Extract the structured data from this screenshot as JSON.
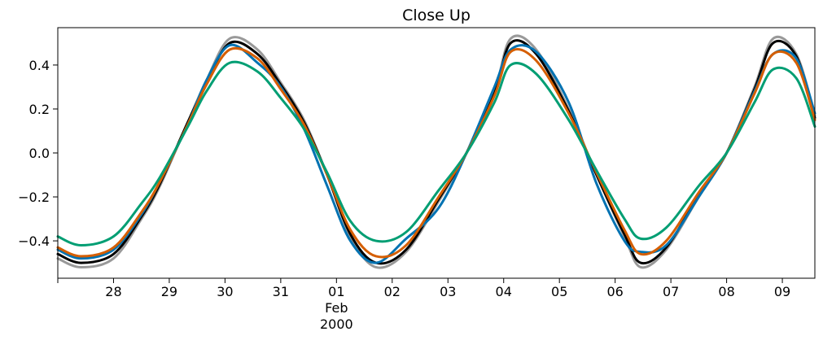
{
  "chart_data": {
    "type": "line",
    "title": "Close Up",
    "xlabel": "",
    "ylabel": "",
    "x_unit": "date",
    "xlim": [
      "2000-01-27T00:00",
      "2000-02-09T14:00"
    ],
    "ylim": [
      -0.57,
      0.57
    ],
    "grid": false,
    "legend": "none",
    "x_ticks": [
      {
        "date": "2000-01-28",
        "label": "28"
      },
      {
        "date": "2000-01-29",
        "label": "29"
      },
      {
        "date": "2000-01-30",
        "label": "30"
      },
      {
        "date": "2000-01-31",
        "label": "31"
      },
      {
        "date": "2000-02-01",
        "label": "01",
        "sublabel": "Feb",
        "sublabel2": "2000"
      },
      {
        "date": "2000-02-02",
        "label": "02"
      },
      {
        "date": "2000-02-03",
        "label": "03"
      },
      {
        "date": "2000-02-04",
        "label": "04"
      },
      {
        "date": "2000-02-05",
        "label": "05"
      },
      {
        "date": "2000-02-06",
        "label": "06"
      },
      {
        "date": "2000-02-07",
        "label": "07"
      },
      {
        "date": "2000-02-08",
        "label": "08"
      },
      {
        "date": "2000-02-09",
        "label": "09"
      }
    ],
    "y_ticks": [
      {
        "value": -0.4,
        "label": "−0.4"
      },
      {
        "value": -0.2,
        "label": "−0.2"
      },
      {
        "value": 0.0,
        "label": "0.0"
      },
      {
        "value": 0.2,
        "label": "0.2"
      },
      {
        "value": 0.4,
        "label": "0.4"
      }
    ],
    "series": [
      {
        "color": "#999999",
        "x": [
          "2000-01-27T00:00",
          "2000-01-27T10:00",
          "2000-01-28T00:00",
          "2000-01-28T12:00",
          "2000-01-28T20:00",
          "2000-01-29T08:00",
          "2000-01-29T16:00",
          "2000-01-30T02:00",
          "2000-01-30T14:00",
          "2000-01-31T00:00",
          "2000-01-31T10:00",
          "2000-01-31T20:00",
          "2000-02-01T06:00",
          "2000-02-01T17:00",
          "2000-02-02T06:00",
          "2000-02-02T20:00",
          "2000-02-03T08:00",
          "2000-02-03T20:00",
          "2000-02-04T03:00",
          "2000-02-04T14:00",
          "2000-02-05T04:00",
          "2000-02-05T16:00",
          "2000-02-06T04:00",
          "2000-02-06T11:00",
          "2000-02-06T22:00",
          "2000-02-07T12:00",
          "2000-02-08T00:00",
          "2000-02-08T12:00",
          "2000-02-08T20:00",
          "2000-02-09T06:00",
          "2000-02-09T14:00"
        ],
        "values": [
          -0.48,
          -0.52,
          -0.48,
          -0.3,
          -0.15,
          0.14,
          0.33,
          0.52,
          0.47,
          0.32,
          0.15,
          -0.1,
          -0.38,
          -0.52,
          -0.45,
          -0.22,
          0.0,
          0.28,
          0.52,
          0.47,
          0.2,
          -0.1,
          -0.38,
          -0.52,
          -0.44,
          -0.2,
          0.0,
          0.3,
          0.52,
          0.45,
          0.17
        ]
      },
      {
        "color": "#000000",
        "x": [
          "2000-01-27T00:00",
          "2000-01-27T10:00",
          "2000-01-28T00:00",
          "2000-01-28T12:00",
          "2000-01-28T20:00",
          "2000-01-29T08:00",
          "2000-01-29T16:00",
          "2000-01-30T02:00",
          "2000-01-30T14:00",
          "2000-01-31T00:00",
          "2000-01-31T10:00",
          "2000-01-31T20:00",
          "2000-02-01T06:00",
          "2000-02-01T17:00",
          "2000-02-02T06:00",
          "2000-02-02T20:00",
          "2000-02-03T08:00",
          "2000-02-03T20:00",
          "2000-02-04T03:00",
          "2000-02-04T14:00",
          "2000-02-05T04:00",
          "2000-02-05T16:00",
          "2000-02-06T04:00",
          "2000-02-06T11:00",
          "2000-02-06T22:00",
          "2000-02-07T12:00",
          "2000-02-08T00:00",
          "2000-02-08T12:00",
          "2000-02-08T20:00",
          "2000-02-09T06:00",
          "2000-02-09T14:00"
        ],
        "values": [
          -0.46,
          -0.5,
          -0.46,
          -0.29,
          -0.14,
          0.14,
          0.32,
          0.5,
          0.45,
          0.31,
          0.14,
          -0.1,
          -0.37,
          -0.5,
          -0.44,
          -0.21,
          0.0,
          0.27,
          0.5,
          0.45,
          0.19,
          -0.1,
          -0.37,
          -0.5,
          -0.43,
          -0.19,
          0.0,
          0.29,
          0.5,
          0.44,
          0.16
        ]
      },
      {
        "color": "#0072b2",
        "x": [
          "2000-01-27T00:00",
          "2000-01-27T10:00",
          "2000-01-28T00:00",
          "2000-01-28T12:00",
          "2000-01-28T20:00",
          "2000-01-29T08:00",
          "2000-01-29T16:00",
          "2000-01-30T02:00",
          "2000-01-30T14:00",
          "2000-01-31T00:00",
          "2000-01-31T10:00",
          "2000-01-31T20:00",
          "2000-02-01T06:00",
          "2000-02-01T17:00",
          "2000-02-02T06:00",
          "2000-02-02T20:00",
          "2000-02-03T08:00",
          "2000-02-03T20:00",
          "2000-02-04T03:00",
          "2000-02-04T14:00",
          "2000-02-05T04:00",
          "2000-02-05T16:00",
          "2000-02-06T04:00",
          "2000-02-06T11:00",
          "2000-02-06T22:00",
          "2000-02-07T12:00",
          "2000-02-08T00:00",
          "2000-02-08T12:00",
          "2000-02-08T20:00",
          "2000-02-09T06:00",
          "2000-02-09T14:00"
        ],
        "values": [
          -0.44,
          -0.48,
          -0.44,
          -0.28,
          -0.13,
          0.13,
          0.33,
          0.49,
          0.41,
          0.3,
          0.11,
          -0.15,
          -0.4,
          -0.5,
          -0.39,
          -0.25,
          0.0,
          0.3,
          0.47,
          0.46,
          0.23,
          -0.14,
          -0.4,
          -0.45,
          -0.42,
          -0.2,
          0.0,
          0.28,
          0.45,
          0.43,
          0.18
        ]
      },
      {
        "color": "#d55e00",
        "x": [
          "2000-01-27T00:00",
          "2000-01-27T10:00",
          "2000-01-28T00:00",
          "2000-01-28T12:00",
          "2000-01-28T20:00",
          "2000-01-29T08:00",
          "2000-01-29T16:00",
          "2000-01-30T02:00",
          "2000-01-30T14:00",
          "2000-01-31T00:00",
          "2000-01-31T10:00",
          "2000-01-31T20:00",
          "2000-02-01T06:00",
          "2000-02-01T17:00",
          "2000-02-02T06:00",
          "2000-02-02T20:00",
          "2000-02-03T08:00",
          "2000-02-03T20:00",
          "2000-02-04T03:00",
          "2000-02-04T14:00",
          "2000-02-05T04:00",
          "2000-02-05T16:00",
          "2000-02-06T04:00",
          "2000-02-06T11:00",
          "2000-02-06T22:00",
          "2000-02-07T12:00",
          "2000-02-08T00:00",
          "2000-02-08T12:00",
          "2000-02-08T20:00",
          "2000-02-09T06:00",
          "2000-02-09T14:00"
        ],
        "values": [
          -0.43,
          -0.47,
          -0.43,
          -0.27,
          -0.13,
          0.13,
          0.31,
          0.47,
          0.43,
          0.29,
          0.13,
          -0.1,
          -0.35,
          -0.47,
          -0.42,
          -0.2,
          0.0,
          0.26,
          0.46,
          0.42,
          0.18,
          -0.09,
          -0.35,
          -0.46,
          -0.4,
          -0.18,
          0.0,
          0.27,
          0.45,
          0.41,
          0.15
        ]
      },
      {
        "color": "#009e73",
        "x": [
          "2000-01-27T00:00",
          "2000-01-27T10:00",
          "2000-01-28T00:00",
          "2000-01-28T12:00",
          "2000-01-28T20:00",
          "2000-01-29T08:00",
          "2000-01-29T16:00",
          "2000-01-30T02:00",
          "2000-01-30T14:00",
          "2000-01-31T00:00",
          "2000-01-31T10:00",
          "2000-01-31T20:00",
          "2000-02-01T06:00",
          "2000-02-01T17:00",
          "2000-02-02T06:00",
          "2000-02-02T20:00",
          "2000-02-03T08:00",
          "2000-02-03T20:00",
          "2000-02-04T03:00",
          "2000-02-04T14:00",
          "2000-02-05T04:00",
          "2000-02-05T16:00",
          "2000-02-06T04:00",
          "2000-02-06T11:00",
          "2000-02-06T22:00",
          "2000-02-07T12:00",
          "2000-02-08T00:00",
          "2000-02-08T12:00",
          "2000-02-08T20:00",
          "2000-02-09T06:00",
          "2000-02-09T14:00"
        ],
        "values": [
          -0.38,
          -0.42,
          -0.38,
          -0.23,
          -0.11,
          0.12,
          0.28,
          0.41,
          0.37,
          0.25,
          0.11,
          -0.09,
          -0.31,
          -0.4,
          -0.36,
          -0.17,
          0.0,
          0.23,
          0.4,
          0.36,
          0.15,
          -0.08,
          -0.3,
          -0.39,
          -0.34,
          -0.15,
          0.0,
          0.23,
          0.38,
          0.34,
          0.12
        ]
      }
    ]
  }
}
